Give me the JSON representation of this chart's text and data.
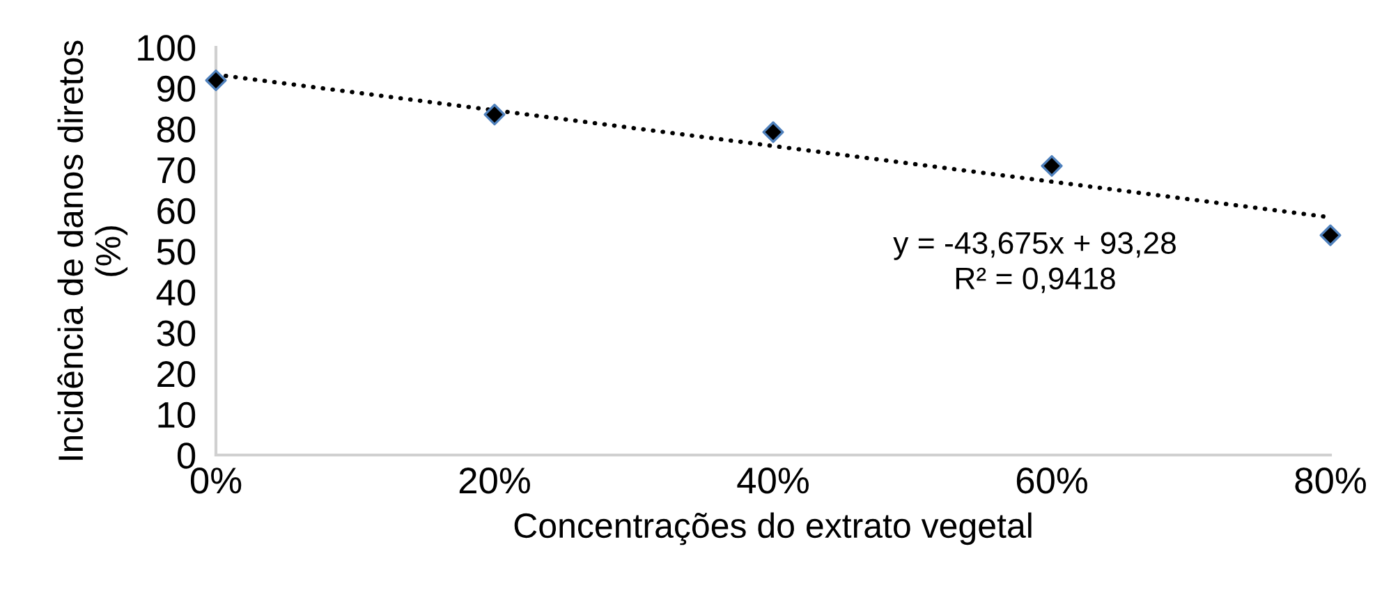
{
  "chart_data": {
    "type": "scatter",
    "xlabel": "Concentrações do extrato vegetal",
    "ylabel": "Incidência de danos diretos\n(%)",
    "x": [
      0,
      0.2,
      0.4,
      0.6,
      0.8
    ],
    "series": [
      {
        "color": "#000000",
        "marker": "diamond",
        "values": [
          91.9,
          83.5,
          79.2,
          70.9,
          53.9
        ]
      },
      {
        "type": "line",
        "color": "#000000",
        "line_style": "dotted",
        "marker": "none",
        "x": [
          0,
          0.8
        ],
        "values": [
          93.3,
          58.3
        ]
      }
    ],
    "annotations": [
      "y = -43,675x + 93,28\nR² = 0,9418"
    ],
    "xlim": [
      0,
      0.8
    ],
    "ylim": [
      0,
      100
    ],
    "xticks": [
      {
        "value": 0,
        "label": "0%"
      },
      {
        "value": 0.2,
        "label": "20%"
      },
      {
        "value": 0.4,
        "label": "40%"
      },
      {
        "value": 0.6,
        "label": "60%"
      },
      {
        "value": 0.8,
        "label": "80%"
      }
    ],
    "yticks": [
      0,
      10,
      20,
      30,
      40,
      50,
      60,
      70,
      80,
      90,
      100
    ],
    "grid": false,
    "legend": false
  }
}
